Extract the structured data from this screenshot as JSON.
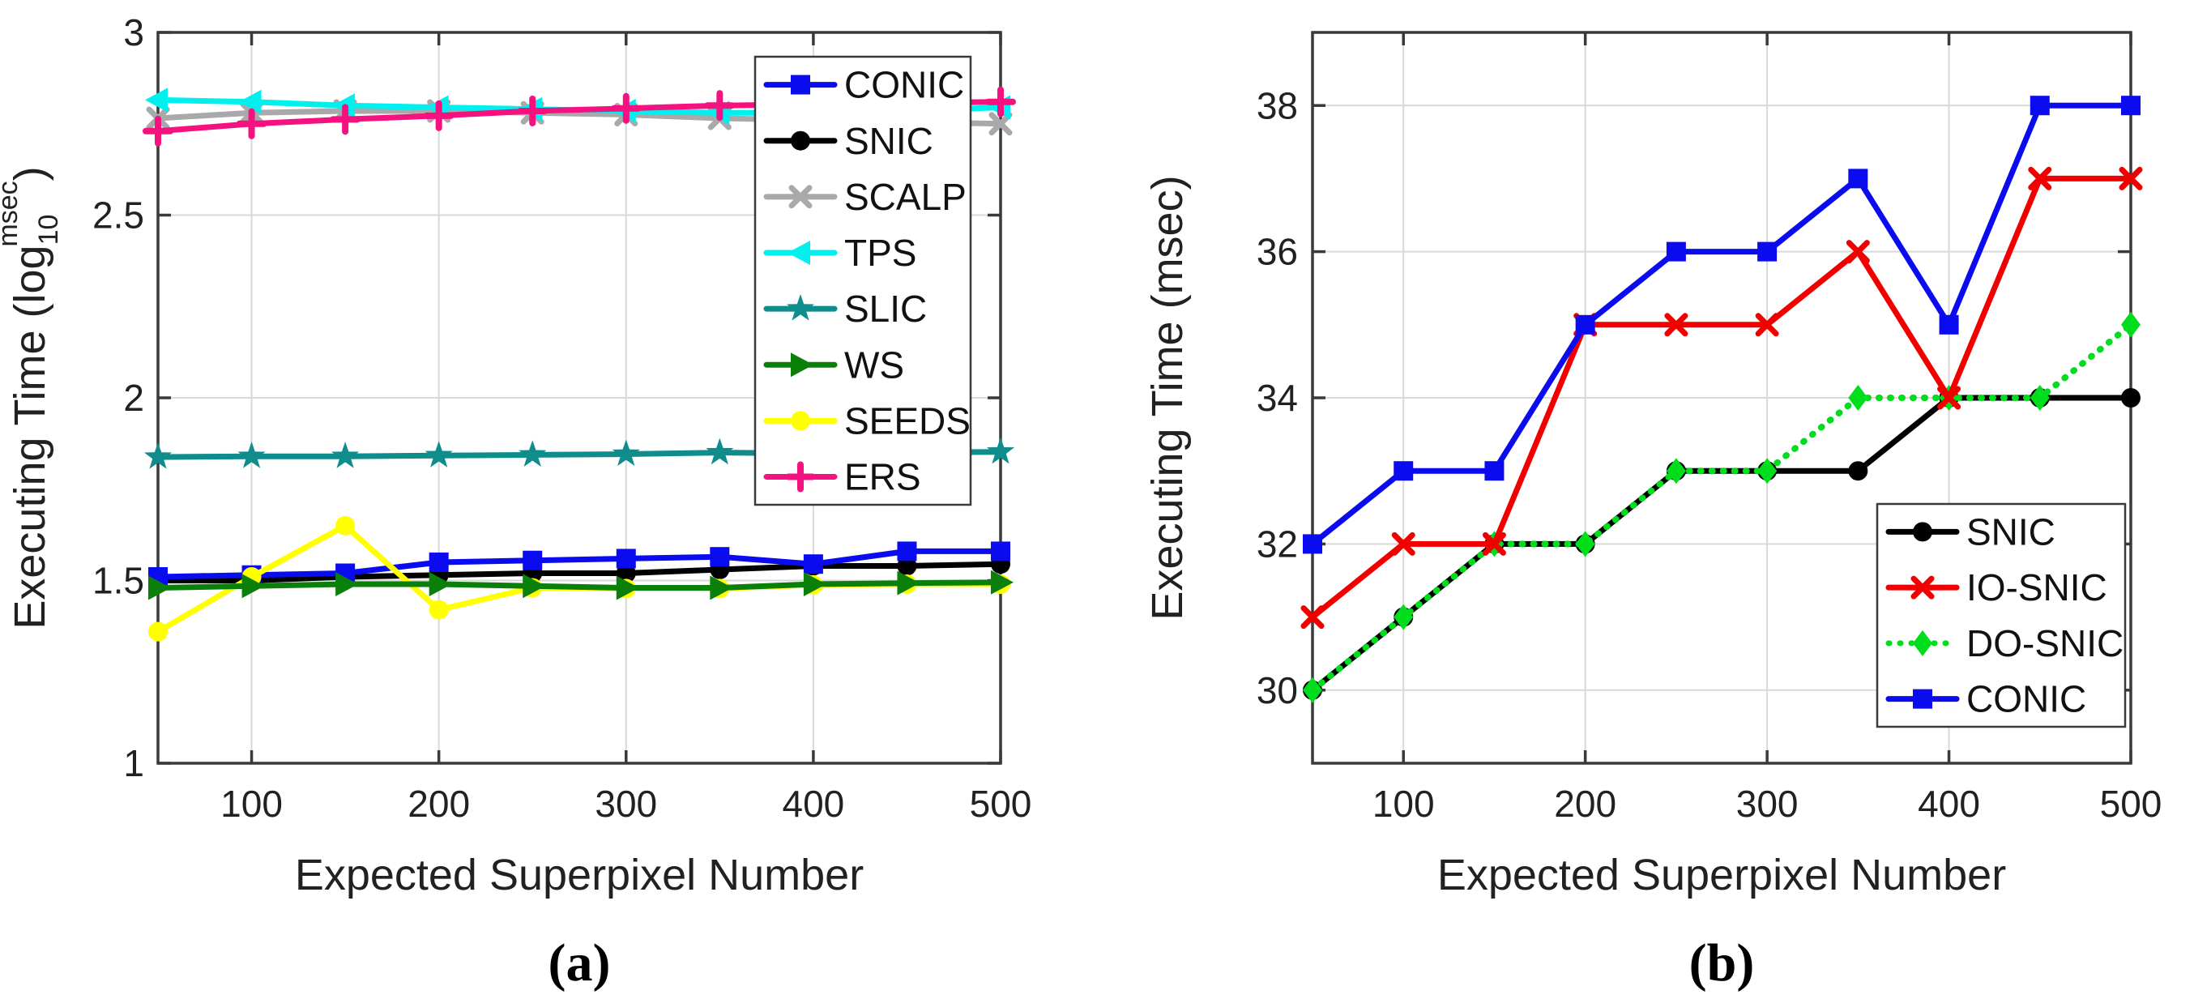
{
  "figure": {
    "background": "#FFFFFF",
    "text_color": "#212121",
    "grid_color": "#D9D9D9",
    "axis_color": "#3A3A3A"
  },
  "chart_data": [
    {
      "id": "a",
      "type": "line",
      "caption": "(a)",
      "title": "",
      "xlabel": "Expected Superpixel Number",
      "ylabel_parts": {
        "prefix": "Executing Time (log",
        "sub": "10",
        "sup": "msec",
        "suffix": ")"
      },
      "xlim": [
        50,
        500
      ],
      "ylim": [
        1,
        3
      ],
      "x_ticks": [
        100,
        200,
        300,
        400,
        500
      ],
      "y_ticks": [
        1,
        1.5,
        2,
        2.5,
        3
      ],
      "y_tick_labels": [
        "1",
        "1.5",
        "2",
        "2.5",
        "3"
      ],
      "grid": true,
      "legend_position": "upper-right-inside",
      "x": [
        50,
        100,
        150,
        200,
        250,
        300,
        350,
        400,
        450,
        500
      ],
      "series": [
        {
          "name": "CONIC",
          "color": "#0B0BEF",
          "marker": "square",
          "linestyle": "solid",
          "values": [
            1.51,
            1.515,
            1.52,
            1.55,
            1.555,
            1.56,
            1.565,
            1.545,
            1.58,
            1.58
          ]
        },
        {
          "name": "SNIC",
          "color": "#000000",
          "marker": "circle",
          "linestyle": "solid",
          "values": [
            1.5,
            1.5,
            1.51,
            1.515,
            1.52,
            1.52,
            1.53,
            1.54,
            1.54,
            1.545
          ]
        },
        {
          "name": "SCALP",
          "color": "#A9A9A9",
          "marker": "cross",
          "linestyle": "solid",
          "values": [
            2.765,
            2.78,
            2.785,
            2.785,
            2.78,
            2.775,
            2.765,
            2.76,
            2.755,
            2.75
          ]
        },
        {
          "name": "TPS",
          "color": "#00EFEF",
          "marker": "tri-left",
          "linestyle": "solid",
          "values": [
            2.815,
            2.81,
            2.8,
            2.795,
            2.79,
            2.785,
            2.78,
            2.78,
            2.785,
            2.795
          ]
        },
        {
          "name": "SLIC",
          "color": "#0F8C8C",
          "marker": "star",
          "linestyle": "solid",
          "values": [
            1.838,
            1.84,
            1.84,
            1.842,
            1.844,
            1.846,
            1.85,
            1.848,
            1.85,
            1.852
          ]
        },
        {
          "name": "WS",
          "color": "#0A800A",
          "marker": "tri-right",
          "linestyle": "solid",
          "values": [
            1.48,
            1.485,
            1.49,
            1.49,
            1.485,
            1.48,
            1.48,
            1.49,
            1.493,
            1.495
          ]
        },
        {
          "name": "SEEDS",
          "color": "#FFFF00",
          "marker": "circle",
          "linestyle": "solid",
          "values": [
            1.36,
            1.51,
            1.65,
            1.42,
            1.48,
            1.478,
            1.478,
            1.488,
            1.49,
            1.49
          ]
        },
        {
          "name": "ERS",
          "color": "#F5117F",
          "marker": "plus",
          "linestyle": "solid",
          "values": [
            2.73,
            2.75,
            2.762,
            2.772,
            2.785,
            2.792,
            2.8,
            2.803,
            2.807,
            2.81
          ]
        }
      ],
      "draw_order": [
        "SLIC",
        "SCALP",
        "TPS",
        "SNIC",
        "CONIC",
        "SEEDS",
        "WS",
        "ERS"
      ]
    },
    {
      "id": "b",
      "type": "line",
      "caption": "(b)",
      "title": "",
      "xlabel": "Expected Superpixel Number",
      "ylabel_parts": {
        "prefix": "Executing Time (msec)",
        "sub": "",
        "sup": "",
        "suffix": ""
      },
      "xlim": [
        50,
        500
      ],
      "ylim": [
        29,
        39
      ],
      "x_ticks": [
        100,
        200,
        300,
        400,
        500
      ],
      "y_ticks": [
        30,
        32,
        34,
        36,
        38
      ],
      "y_tick_labels": [
        "30",
        "32",
        "34",
        "36",
        "38"
      ],
      "grid": true,
      "legend_position": "lower-right-inside",
      "x": [
        50,
        100,
        150,
        200,
        250,
        300,
        350,
        400,
        450,
        500
      ],
      "series": [
        {
          "name": "SNIC",
          "color": "#000000",
          "marker": "circle",
          "linestyle": "solid",
          "values": [
            30,
            31,
            32,
            32,
            33,
            33,
            33,
            34,
            34,
            34
          ]
        },
        {
          "name": "IO-SNIC",
          "color": "#F20000",
          "marker": "cross",
          "linestyle": "solid",
          "values": [
            31,
            32,
            32,
            35,
            35,
            35,
            36,
            34,
            37,
            37
          ]
        },
        {
          "name": "DO-SNIC",
          "color": "#00DD1C",
          "marker": "diamond",
          "linestyle": "dotted",
          "values": [
            30,
            31,
            32,
            32,
            33,
            33,
            34,
            34,
            34,
            35
          ]
        },
        {
          "name": "CONIC",
          "color": "#0B0BEF",
          "marker": "square",
          "linestyle": "solid",
          "values": [
            32,
            33,
            33,
            35,
            36,
            36,
            37,
            35,
            38,
            38
          ]
        }
      ],
      "draw_order": [
        "SNIC",
        "DO-SNIC",
        "IO-SNIC",
        "CONIC"
      ]
    }
  ]
}
